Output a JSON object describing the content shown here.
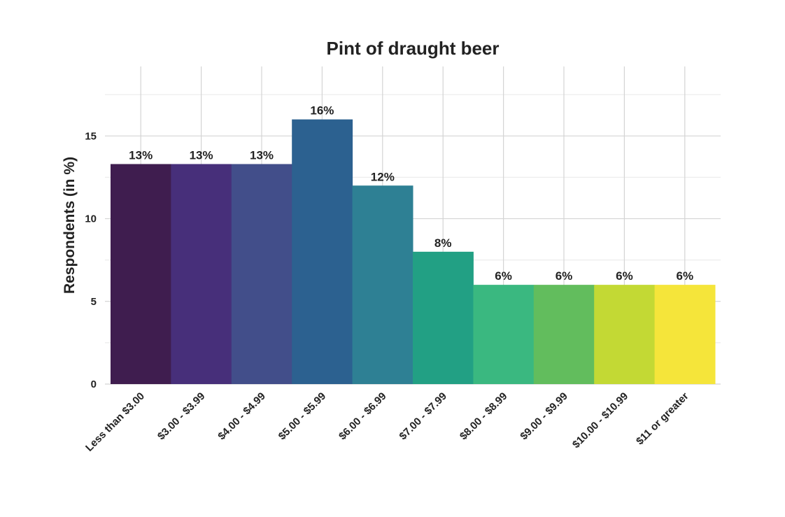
{
  "chart_data": {
    "type": "bar",
    "title": "Pint of draught beer",
    "xlabel": "",
    "ylabel": "Respondents (in %)",
    "ylim": [
      0,
      19.2
    ],
    "yticks": [
      0,
      5,
      10,
      15
    ],
    "grid": true,
    "categories": [
      "Less than $3.00",
      "$3.00 - $3.99",
      "$4.00 - $4.99",
      "$5.00 - $5.99",
      "$6.00 - $6.99",
      "$7.00 - $7.99",
      "$8.00 - $8.99",
      "$9.00 - $9.99",
      "$10.00 - $10.99",
      "$11 or greater"
    ],
    "values": [
      13.3,
      13.3,
      13.3,
      16,
      12,
      8,
      6,
      6,
      6,
      6
    ],
    "data_labels": [
      "13%",
      "13%",
      "13%",
      "16%",
      "12%",
      "8%",
      "6%",
      "6%",
      "6%",
      "6%"
    ],
    "colors": [
      "#3f1d4f",
      "#472f7a",
      "#424e8a",
      "#2c6190",
      "#2e8094",
      "#22a084",
      "#3ab880",
      "#62bd5d",
      "#c3d934",
      "#f5e53a"
    ]
  }
}
